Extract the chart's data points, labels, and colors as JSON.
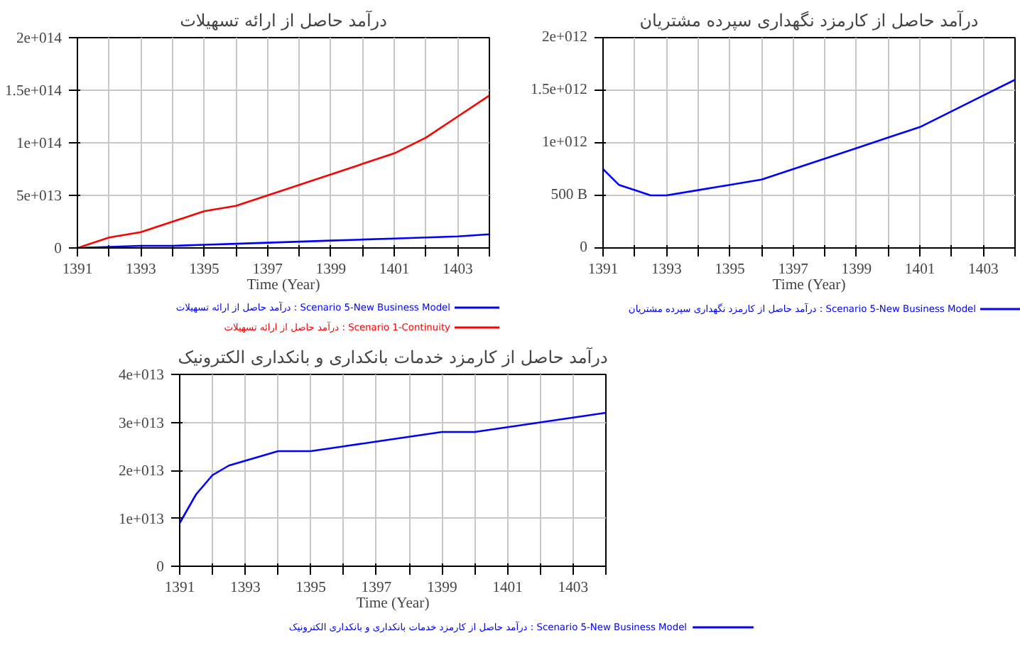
{
  "chart_data": [
    {
      "type": "line",
      "title": "درآمد حاصل از ارائه تسهیلات",
      "xlabel": "Time (Year)",
      "x": [
        1391,
        1392,
        1393,
        1394,
        1395,
        1396,
        1397,
        1398,
        1399,
        1400,
        1401,
        1402,
        1403,
        1404
      ],
      "series": [
        {
          "name": "درآمد حاصل از ارائه تسهیلات : Scenario 5-New Business Model",
          "color": "#0000ff",
          "values": [
            0,
            1000000000000.0,
            2000000000000.0,
            2000000000000.0,
            3000000000000.0,
            4000000000000.0,
            5000000000000.0,
            6000000000000.0,
            7000000000000.0,
            8000000000000.0,
            9000000000000.0,
            10000000000000.0,
            11000000000000.0,
            13000000000000.0
          ]
        },
        {
          "name": "درآمد حاصل از ارائه تسهیلات : Scenario 1-Continuity",
          "color": "#ff0000",
          "values": [
            0,
            10000000000000.0,
            15000000000000.0,
            25000000000000.0,
            35000000000000.0,
            40000000000000.0,
            50000000000000.0,
            60000000000000.0,
            70000000000000.0,
            80000000000000.0,
            90000000000000.0,
            105000000000000.0,
            125000000000000.0,
            145000000000000.0
          ]
        }
      ],
      "xlim": [
        1391,
        1404
      ],
      "xticks": [
        1391,
        {
          "value": 1392,
          "label": null
        },
        1393,
        {
          "value": 1394,
          "label": null
        },
        1395,
        {
          "value": 1396,
          "label": null
        },
        1397,
        {
          "value": 1398,
          "label": null
        },
        1399,
        {
          "value": 1400,
          "label": null
        },
        1401,
        {
          "value": 1402,
          "label": null
        },
        1403,
        {
          "value": 1404,
          "label": null
        }
      ],
      "ylim": [
        0,
        200000000000000.0
      ],
      "yticks": [
        {
          "value": 0,
          "label": "0"
        },
        {
          "value": 50000000000000.0,
          "label": "5e+013"
        },
        {
          "value": 100000000000000.0,
          "label": "1e+014"
        },
        {
          "value": 150000000000000.0,
          "label": "1.5e+014"
        },
        {
          "value": 200000000000000.0,
          "label": "2e+014"
        }
      ],
      "grid": true,
      "legend": "bottom"
    },
    {
      "type": "line",
      "title": "درآمد حاصل از کارمزد نگهداری سپرده مشتریان",
      "xlabel": "Time (Year)",
      "x": [
        1391,
        1391.5,
        1392,
        1392.5,
        1393,
        1394,
        1395,
        1396,
        1397,
        1398,
        1399,
        1400,
        1401,
        1402,
        1403,
        1404
      ],
      "series": [
        {
          "name": "درآمد حاصل از کارمزد نگهداری سپرده مشتریان : Scenario 5-New Business Model",
          "color": "#0000ff",
          "values": [
            750000000000.0,
            600000000000.0,
            550000000000.0,
            500000000000.0,
            500000000000.0,
            550000000000.0,
            600000000000.0,
            650000000000.0,
            750000000000.0,
            850000000000.0,
            950000000000.0,
            1050000000000.0,
            1150000000000.0,
            1300000000000.0,
            1450000000000.0,
            1600000000000.0
          ]
        }
      ],
      "xlim": [
        1391,
        1404
      ],
      "xticks": [
        1391,
        {
          "value": 1392,
          "label": null
        },
        1393,
        {
          "value": 1394,
          "label": null
        },
        1395,
        {
          "value": 1396,
          "label": null
        },
        1397,
        {
          "value": 1398,
          "label": null
        },
        1399,
        {
          "value": 1400,
          "label": null
        },
        1401,
        {
          "value": 1402,
          "label": null
        },
        1403,
        {
          "value": 1404,
          "label": null
        }
      ],
      "ylim": [
        0,
        2000000000000.0
      ],
      "yticks": [
        {
          "value": 0,
          "label": "0"
        },
        {
          "value": 500000000000.0,
          "label": "500 B"
        },
        {
          "value": 1000000000000.0,
          "label": "1e+012"
        },
        {
          "value": 1500000000000.0,
          "label": "1.5e+012"
        },
        {
          "value": 2000000000000.0,
          "label": "2e+012"
        }
      ],
      "grid": true,
      "legend": "bottom"
    },
    {
      "type": "line",
      "title": "درآمد حاصل از کارمزد خدمات بانکداری و بانکداری الکترونیک",
      "xlabel": "Time (Year)",
      "x": [
        1391,
        1391.5,
        1392,
        1392.5,
        1393,
        1394,
        1395,
        1396,
        1397,
        1398,
        1399,
        1400,
        1401,
        1402,
        1403,
        1404
      ],
      "series": [
        {
          "name": "درآمد حاصل از کارمزد خدمات بانکداری و بانکداری الکترونیک : Scenario 5-New Business Model",
          "color": "#0000ff",
          "values": [
            9000000000000.0,
            15000000000000.0,
            19000000000000.0,
            21000000000000.0,
            22000000000000.0,
            24000000000000.0,
            24000000000000.0,
            25000000000000.0,
            26000000000000.0,
            27000000000000.0,
            28000000000000.0,
            28000000000000.0,
            29000000000000.0,
            30000000000000.0,
            31000000000000.0,
            32000000000000.0
          ]
        }
      ],
      "xlim": [
        1391,
        1404
      ],
      "xticks": [
        1391,
        {
          "value": 1392,
          "label": null
        },
        1393,
        {
          "value": 1394,
          "label": null
        },
        1395,
        {
          "value": 1396,
          "label": null
        },
        1397,
        {
          "value": 1398,
          "label": null
        },
        1399,
        {
          "value": 1400,
          "label": null
        },
        1401,
        {
          "value": 1402,
          "label": null
        },
        1403,
        {
          "value": 1404,
          "label": null
        }
      ],
      "ylim": [
        0,
        40000000000000.0
      ],
      "yticks": [
        {
          "value": 0,
          "label": "0"
        },
        {
          "value": 10000000000000.0,
          "label": "1e+013"
        },
        {
          "value": 20000000000000.0,
          "label": "2e+013"
        },
        {
          "value": 30000000000000.0,
          "label": "3e+013"
        },
        {
          "value": 40000000000000.0,
          "label": "4e+013"
        }
      ],
      "grid": true,
      "legend": "bottom"
    }
  ]
}
